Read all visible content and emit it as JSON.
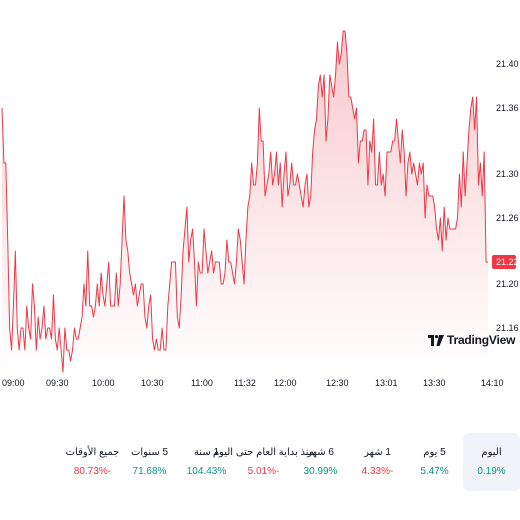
{
  "colors": {
    "line": "#f23645",
    "fill_top": "#f7c6c9",
    "fill_bottom": "#ffffff",
    "last_price_bg": "#f23645",
    "positive": "#089981",
    "negative": "#f23645",
    "selected_bg": "#f0f3fa"
  },
  "logo": {
    "text": "TradingView",
    "icon": "tradingview-logo-icon"
  },
  "chart_data": {
    "type": "line",
    "title": "",
    "xlabel": "",
    "ylabel": "",
    "x_ticks": [
      "09:00",
      "09:30",
      "10:00",
      "10:30",
      "11:00",
      "11:32",
      "12:00",
      "12:30",
      "13:01",
      "13:30",
      "14:10"
    ],
    "y_ticks": [
      "21.16",
      "21.20",
      "21.22",
      "21.26",
      "21.30",
      "21.36",
      "21.40"
    ],
    "ylim": [
      21.12,
      21.44
    ],
    "last_price": "21.22",
    "series": [
      {
        "values": [
          21.36,
          21.31,
          21.31,
          21.24,
          21.16,
          21.14,
          21.18,
          21.23,
          21.16,
          21.14,
          21.16,
          21.16,
          21.14,
          21.18,
          21.16,
          21.15,
          21.2,
          21.18,
          21.14,
          21.17,
          21.15,
          21.16,
          21.18,
          21.15,
          21.16,
          21.16,
          21.15,
          21.19,
          21.15,
          21.14,
          21.16,
          21.14,
          21.12,
          21.16,
          21.14,
          21.14,
          21.13,
          21.14,
          21.16,
          21.15,
          21.15,
          21.16,
          21.17,
          21.2,
          21.18,
          21.23,
          21.18,
          21.18,
          21.17,
          21.18,
          21.2,
          21.18,
          21.21,
          21.19,
          21.18,
          21.2,
          21.22,
          21.18,
          21.18,
          21.18,
          21.21,
          21.18,
          21.2,
          21.24,
          21.28,
          21.24,
          21.23,
          21.21,
          21.2,
          21.19,
          21.2,
          21.18,
          21.19,
          21.2,
          21.2,
          21.17,
          21.16,
          21.18,
          21.19,
          21.15,
          21.14,
          21.15,
          21.14,
          21.14,
          21.16,
          21.14,
          21.14,
          21.18,
          21.2,
          21.22,
          21.22,
          21.22,
          21.17,
          21.16,
          21.19,
          21.23,
          21.25,
          21.27,
          21.22,
          21.24,
          21.25,
          21.22,
          21.18,
          21.22,
          21.21,
          21.21,
          21.25,
          21.23,
          21.21,
          21.22,
          21.23,
          21.21,
          21.22,
          21.22,
          21.22,
          21.2,
          21.2,
          21.21,
          21.24,
          21.22,
          21.22,
          21.21,
          21.2,
          21.22,
          21.25,
          21.24,
          21.22,
          21.2,
          21.24,
          21.27,
          21.28,
          21.31,
          21.29,
          21.29,
          21.31,
          21.36,
          21.33,
          21.33,
          21.28,
          21.29,
          21.3,
          21.32,
          21.29,
          21.3,
          21.32,
          21.29,
          21.31,
          21.27,
          21.3,
          21.32,
          21.28,
          21.29,
          21.31,
          21.29,
          21.29,
          21.3,
          21.29,
          21.28,
          21.27,
          21.29,
          21.3,
          21.27,
          21.28,
          21.32,
          21.34,
          21.35,
          21.38,
          21.39,
          21.37,
          21.39,
          21.33,
          21.35,
          21.39,
          21.38,
          21.37,
          21.39,
          21.42,
          21.4,
          21.41,
          21.43,
          21.43,
          21.41,
          21.37,
          21.37,
          21.36,
          21.35,
          21.36,
          21.31,
          21.33,
          21.33,
          21.34,
          21.34,
          21.29,
          21.33,
          21.32,
          21.35,
          21.29,
          21.29,
          21.32,
          21.29,
          21.3,
          21.28,
          21.32,
          21.32,
          21.32,
          21.33,
          21.33,
          21.35,
          21.33,
          21.31,
          21.34,
          21.32,
          21.28,
          21.31,
          21.32,
          21.3,
          21.31,
          21.3,
          21.29,
          21.31,
          21.3,
          21.31,
          21.26,
          21.29,
          21.28,
          21.28,
          21.28,
          21.27,
          21.25,
          21.24,
          21.26,
          21.23,
          21.27,
          21.24,
          21.26,
          21.25,
          21.25,
          21.25,
          21.25,
          21.26,
          21.3,
          21.27,
          21.32,
          21.28,
          21.31,
          21.34,
          21.36,
          21.37,
          21.34,
          21.37,
          21.29,
          21.31,
          21.28,
          21.32,
          21.22,
          21.22
        ]
      }
    ]
  },
  "periods": [
    {
      "label": "اليوم",
      "value": "0.19%",
      "trend": "pos",
      "selected": true
    },
    {
      "label": "5 يوم",
      "value": "5.47%",
      "trend": "pos",
      "selected": false
    },
    {
      "label": "1 شهر",
      "value": "4.33%-",
      "trend": "neg",
      "selected": false
    },
    {
      "label": "6 شهر",
      "value": "30.99%",
      "trend": "pos",
      "selected": false
    },
    {
      "label": "منذ بداية العام حتى اليوم",
      "value": "5.01%-",
      "trend": "neg",
      "selected": false
    },
    {
      "label": "1 سنة",
      "value": "104.43%",
      "trend": "pos",
      "selected": false
    },
    {
      "label": "5 سنوات",
      "value": "71.68%",
      "trend": "pos",
      "selected": false
    },
    {
      "label": "جميع الأوقات",
      "value": "80.73%-",
      "trend": "neg",
      "selected": false
    }
  ]
}
